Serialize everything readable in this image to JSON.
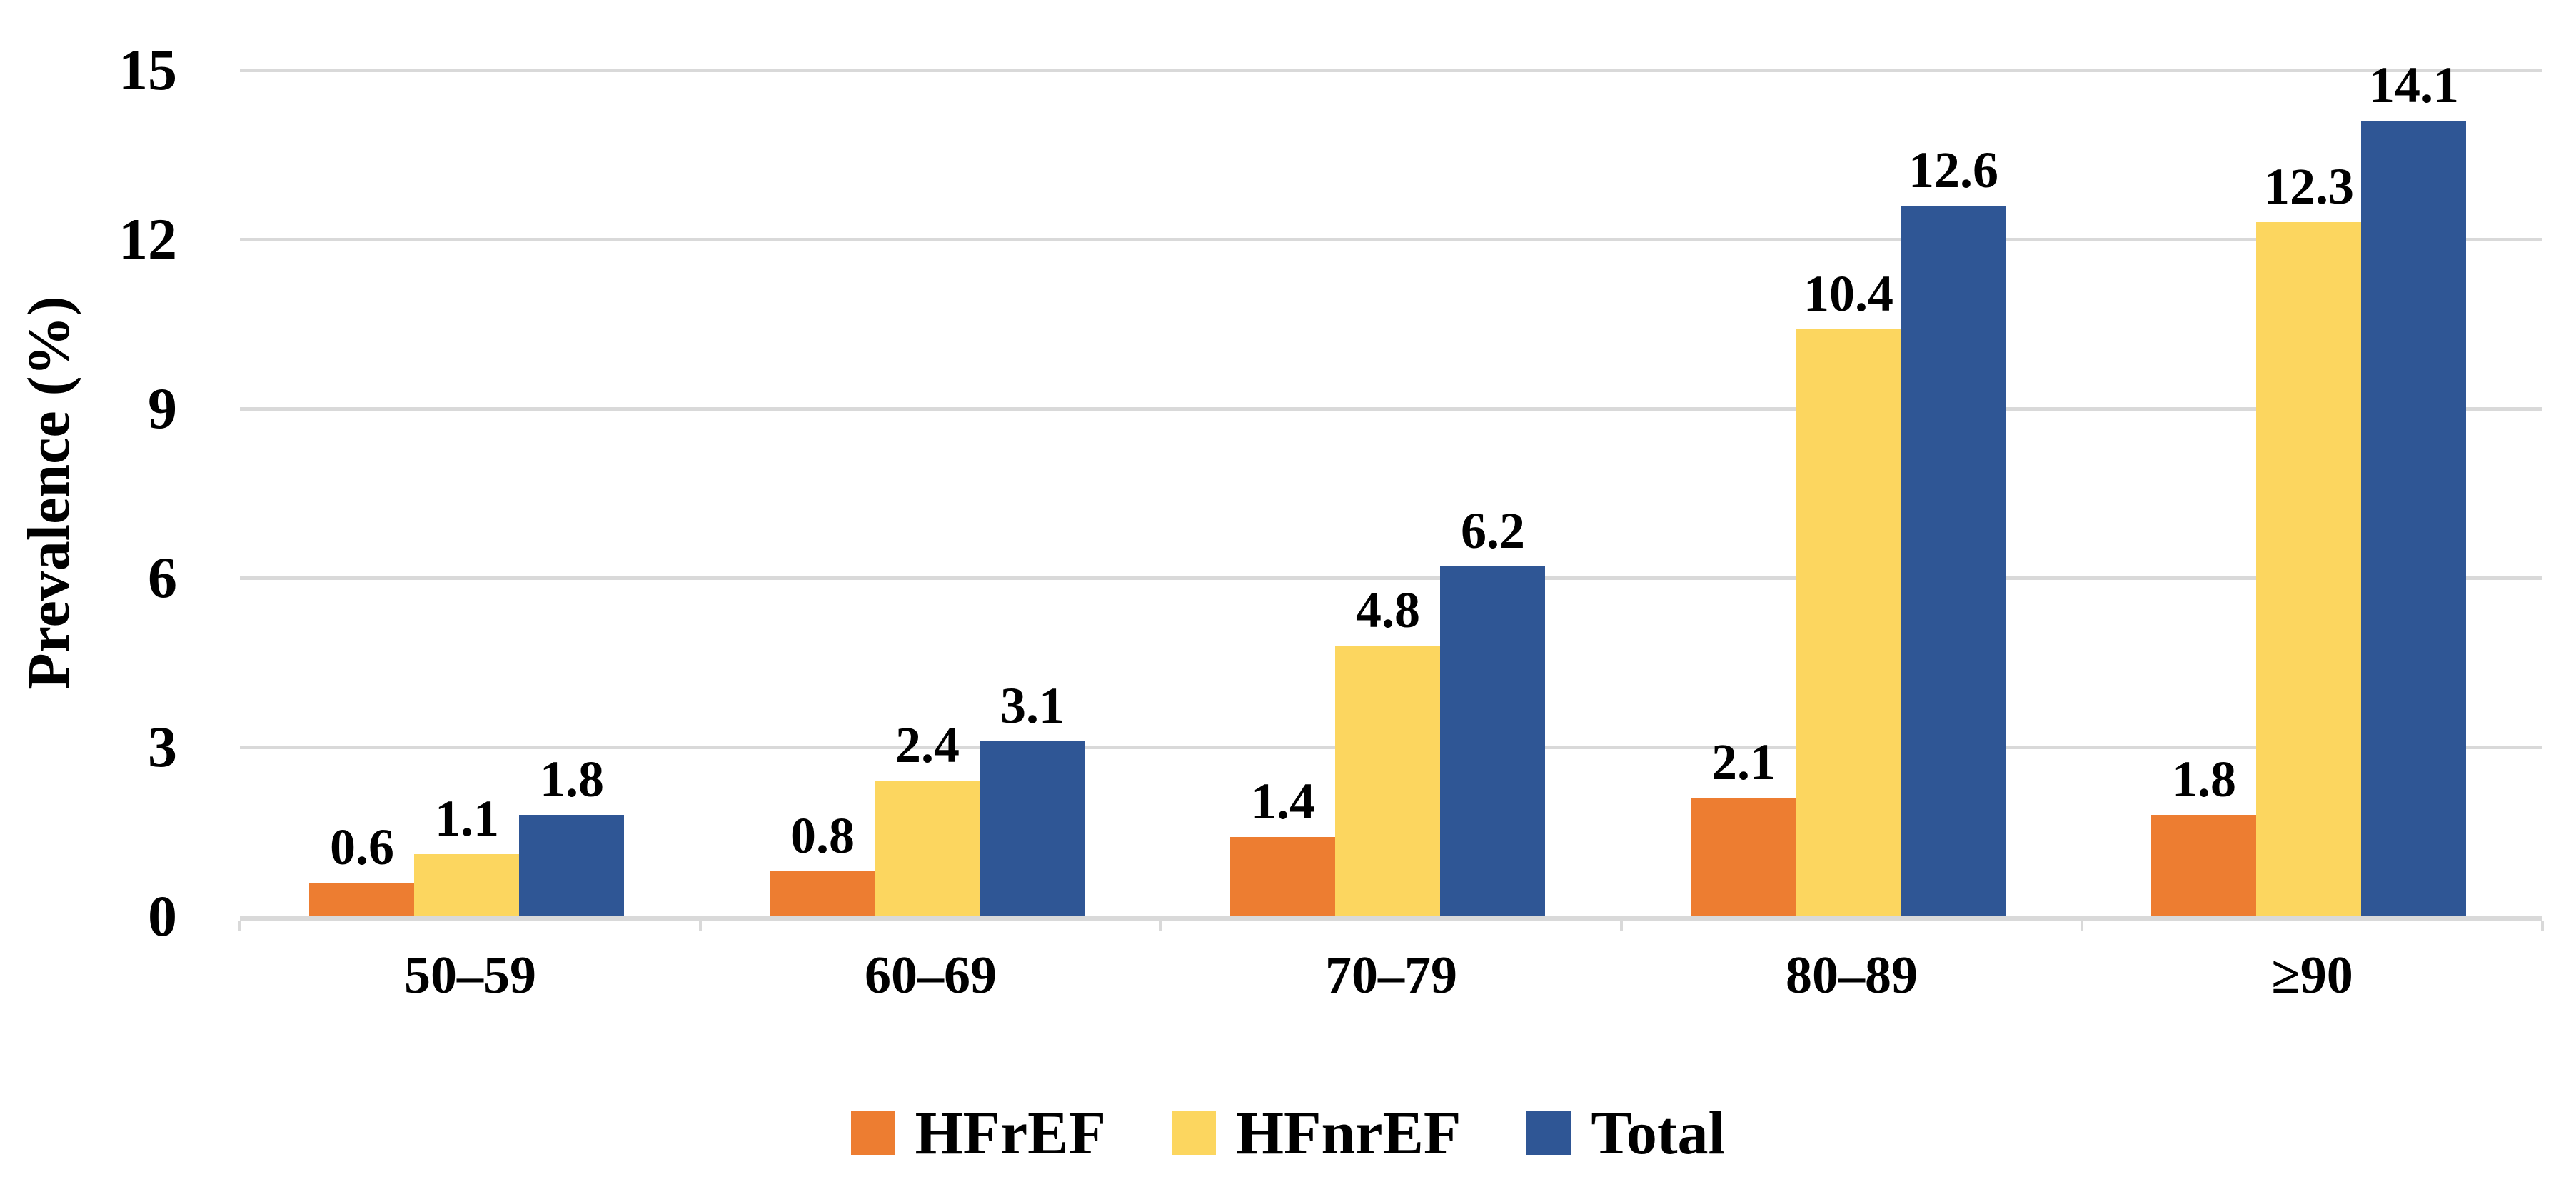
{
  "chart_data": {
    "type": "bar",
    "title": "",
    "ylabel": "Prevalence (%)",
    "xlabel": "",
    "categories": [
      "50–59",
      "60–69",
      "70–79",
      "80–89",
      "≥90"
    ],
    "series": [
      {
        "name": "HFrEF",
        "color": "#ED7D31",
        "values": [
          0.6,
          0.8,
          1.4,
          2.1,
          1.8
        ]
      },
      {
        "name": "HFnrEF",
        "color": "#FCD65F",
        "values": [
          1.1,
          2.4,
          4.8,
          10.4,
          12.3
        ]
      },
      {
        "name": "Total",
        "color": "#2F5695",
        "values": [
          1.8,
          3.1,
          6.2,
          12.6,
          14.1
        ]
      }
    ],
    "ylim": [
      0,
      15
    ],
    "yticks": [
      0,
      3,
      6,
      9,
      12,
      15
    ],
    "grid": "horizontal",
    "gridline_color": "#D9D9D9",
    "axis_line_color": "#D9D9D9",
    "data_labels": true,
    "data_label_format": "0.0",
    "legend_position": "bottom"
  }
}
